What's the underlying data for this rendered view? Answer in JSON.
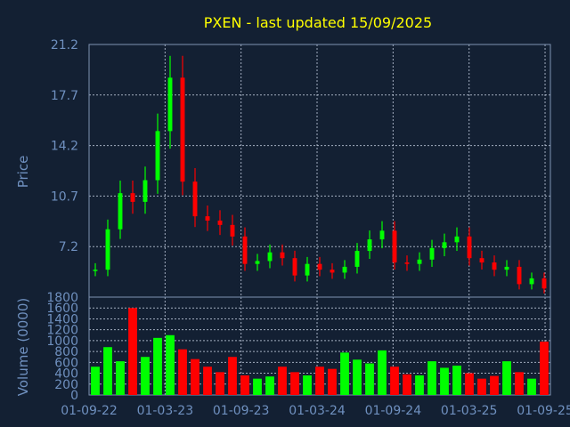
{
  "chart_data": [
    {
      "type": "candlestick",
      "title": "PXEN - last updated 15/09/2025",
      "ylabel": "Price",
      "ylim": [
        3.7,
        21.2
      ],
      "yticks": [
        "21.2",
        "17.7",
        "14.2",
        "10.7",
        "7.2"
      ],
      "ytick_values": [
        21.2,
        17.7,
        14.2,
        10.7,
        7.2
      ],
      "grid": true,
      "colors": {
        "up": "#00ff00",
        "down": "#ff0000",
        "grid": "#c8d2e4",
        "background": "#132033",
        "text": "#6f90bf",
        "title": "#ffff00"
      },
      "x": [
        "01-09-22",
        "01-10-22",
        "01-11-22",
        "01-12-22",
        "01-01-23",
        "01-02-23",
        "01-03-23",
        "01-04-23",
        "01-05-23",
        "01-06-23",
        "01-07-23",
        "01-08-23",
        "01-09-23",
        "01-10-23",
        "01-11-23",
        "01-12-23",
        "01-01-24",
        "01-02-24",
        "01-03-24",
        "01-04-24",
        "01-05-24",
        "01-06-24",
        "01-07-24",
        "01-08-24",
        "01-09-24",
        "01-10-24",
        "01-11-24",
        "01-12-24",
        "01-01-25",
        "01-02-25",
        "01-03-25",
        "01-04-25",
        "01-05-25",
        "01-06-25",
        "01-07-25",
        "01-08-25",
        "15-09-25"
      ],
      "close": [
        5.6,
        8.4,
        10.9,
        10.3,
        11.8,
        15.2,
        18.9,
        11.7,
        9.3,
        9.0,
        8.7,
        7.9,
        6.0,
        6.2,
        6.8,
        6.4,
        5.2,
        6.0,
        5.6,
        5.4,
        5.8,
        6.9,
        7.7,
        8.3,
        6.1,
        6.0,
        6.3,
        7.1,
        7.5,
        7.9,
        6.4,
        6.1,
        5.6,
        5.8,
        4.6,
        5.0,
        4.3
      ]
    },
    {
      "type": "bar",
      "ylabel": "Volume (0000)",
      "ylim": [
        0,
        1800
      ],
      "yticks": [
        "1800",
        "1600",
        "1400",
        "1200",
        "1000",
        "800",
        "600",
        "400",
        "200",
        "0"
      ],
      "ytick_values": [
        1800,
        1600,
        1400,
        1200,
        1000,
        800,
        600,
        400,
        200,
        0
      ],
      "xticks": [
        "01-09-22",
        "01-03-23",
        "01-09-23",
        "01-03-24",
        "01-09-24",
        "01-03-25",
        "01-09-25"
      ],
      "values": [
        520,
        880,
        620,
        1600,
        700,
        1050,
        1100,
        840,
        660,
        520,
        420,
        700,
        360,
        300,
        340,
        520,
        420,
        360,
        520,
        480,
        780,
        650,
        580,
        820,
        520,
        380,
        360,
        620,
        500,
        540,
        400,
        300,
        350,
        620,
        420,
        300,
        980
      ]
    }
  ]
}
